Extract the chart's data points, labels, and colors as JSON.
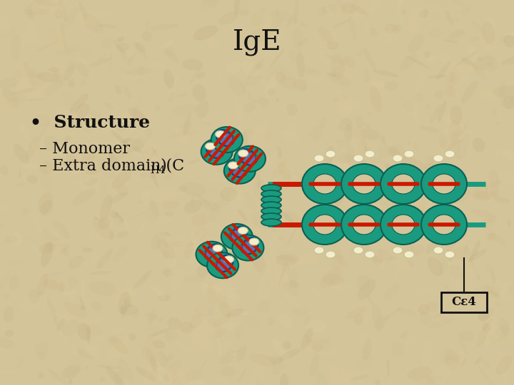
{
  "title": "IgE",
  "title_fontsize": 28,
  "bullet_text": "Structure",
  "bullet_fontsize": 18,
  "sub1": "– Monomer",
  "sub2_main": "– Extra domain (C",
  "sub2_sub": "H4",
  "sub2_close": ")",
  "sub_fontsize": 16,
  "bg_color": "#d4c49a",
  "teal_color": "#1a9b80",
  "teal_dark": "#0a6050",
  "teal_mid": "#12806a",
  "blue_color": "#2060c0",
  "blue_dark": "#0a3080",
  "red_color": "#cc1800",
  "cream_color": "#f2edcc",
  "cream_edge": "#c8c090",
  "black_color": "#111111",
  "label_text": "Cε4",
  "label_fontsize": 12
}
